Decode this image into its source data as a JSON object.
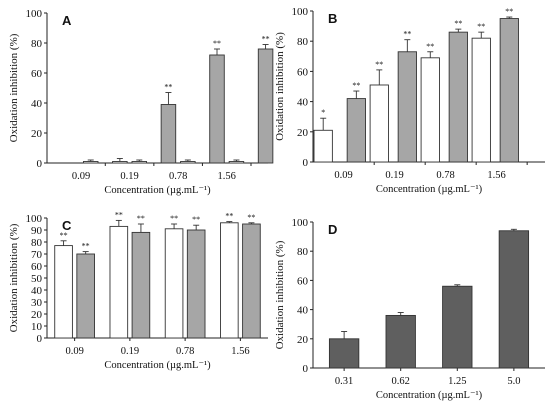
{
  "chart_data": [
    {
      "type": "bar",
      "panel": "A",
      "ylabel": "Oxidation inhibition (%)",
      "xlabel": "Concentration (µg.mL⁻¹)",
      "ylim": [
        0,
        100
      ],
      "yticks": [
        0,
        20,
        40,
        60,
        80,
        100
      ],
      "tick_labels": [
        "0.09",
        "0.19",
        "0.78",
        "1.56"
      ],
      "bars": [
        {
          "value": 1,
          "error": 1,
          "color": "#ffffff",
          "sig": ""
        },
        {
          "value": 1,
          "error": 2,
          "color": "#ffffff",
          "sig": ""
        },
        {
          "value": 1,
          "error": 1,
          "color": "#ffffff",
          "sig": ""
        },
        {
          "value": 39,
          "error": 8,
          "color": "#a6a6a6",
          "sig": "**"
        },
        {
          "value": 1,
          "error": 1,
          "color": "#ffffff",
          "sig": ""
        },
        {
          "value": 72,
          "error": 4,
          "color": "#a6a6a6",
          "sig": "**"
        },
        {
          "value": 1,
          "error": 1,
          "color": "#ffffff",
          "sig": ""
        },
        {
          "value": 76,
          "error": 3,
          "color": "#a6a6a6",
          "sig": "**"
        }
      ]
    },
    {
      "type": "bar",
      "panel": "B",
      "ylabel": "Oxidation inhibition (%)",
      "xlabel": "Concentration (µg.mL⁻¹)",
      "ylim": [
        0,
        100
      ],
      "yticks": [
        0,
        20,
        40,
        60,
        80,
        100
      ],
      "tick_labels": [
        "0.09",
        "0.19",
        "0.78",
        "1.56"
      ],
      "bars": [
        {
          "value": 21,
          "error": 8,
          "color": "#ffffff",
          "sig": "*"
        },
        {
          "value": 42,
          "error": 5,
          "color": "#a6a6a6",
          "sig": "**"
        },
        {
          "value": 51,
          "error": 10,
          "color": "#ffffff",
          "sig": "**"
        },
        {
          "value": 73,
          "error": 8,
          "color": "#a6a6a6",
          "sig": "**"
        },
        {
          "value": 69,
          "error": 4,
          "color": "#ffffff",
          "sig": "**"
        },
        {
          "value": 86,
          "error": 2,
          "color": "#a6a6a6",
          "sig": "**"
        },
        {
          "value": 82,
          "error": 4,
          "color": "#ffffff",
          "sig": "**"
        },
        {
          "value": 95,
          "error": 1,
          "color": "#a6a6a6",
          "sig": "**"
        }
      ]
    },
    {
      "type": "bar",
      "panel": "C",
      "ylabel": "Oxidation inhibition (%)",
      "xlabel": "Concentration (µg.mL⁻¹)",
      "ylim": [
        0,
        100
      ],
      "yticks": [
        0,
        10,
        20,
        30,
        40,
        50,
        60,
        70,
        80,
        90,
        100
      ],
      "tick_labels": [
        "0.09",
        "0.19",
        "0.78",
        "1.56"
      ],
      "bars": [
        {
          "value": 77,
          "error": 4,
          "color": "#ffffff",
          "sig": "**"
        },
        {
          "value": 70,
          "error": 2,
          "color": "#a6a6a6",
          "sig": "**"
        },
        {
          "value": 93,
          "error": 5,
          "color": "#ffffff",
          "sig": "**"
        },
        {
          "value": 88,
          "error": 7,
          "color": "#a6a6a6",
          "sig": "**"
        },
        {
          "value": 91,
          "error": 4,
          "color": "#ffffff",
          "sig": "**"
        },
        {
          "value": 90,
          "error": 4,
          "color": "#a6a6a6",
          "sig": "**"
        },
        {
          "value": 96,
          "error": 1,
          "color": "#ffffff",
          "sig": "**"
        },
        {
          "value": 95,
          "error": 1,
          "color": "#a6a6a6",
          "sig": "**"
        }
      ]
    },
    {
      "type": "bar",
      "panel": "D",
      "ylabel": "Oxidation inhibition (%)",
      "xlabel": "Concentration (µg.mL⁻¹)",
      "ylim": [
        0,
        100
      ],
      "yticks": [
        0,
        20,
        40,
        60,
        80,
        100
      ],
      "tick_labels": [
        "0.31",
        "0.62",
        "1.25",
        "5.0"
      ],
      "bars": [
        {
          "value": 20,
          "error": 5,
          "color": "#5f5f5f",
          "sig": ""
        },
        {
          "value": 36,
          "error": 2,
          "color": "#5f5f5f",
          "sig": ""
        },
        {
          "value": 56,
          "error": 1,
          "color": "#5f5f5f",
          "sig": ""
        },
        {
          "value": 94,
          "error": 1,
          "color": "#5f5f5f",
          "sig": ""
        }
      ]
    }
  ]
}
